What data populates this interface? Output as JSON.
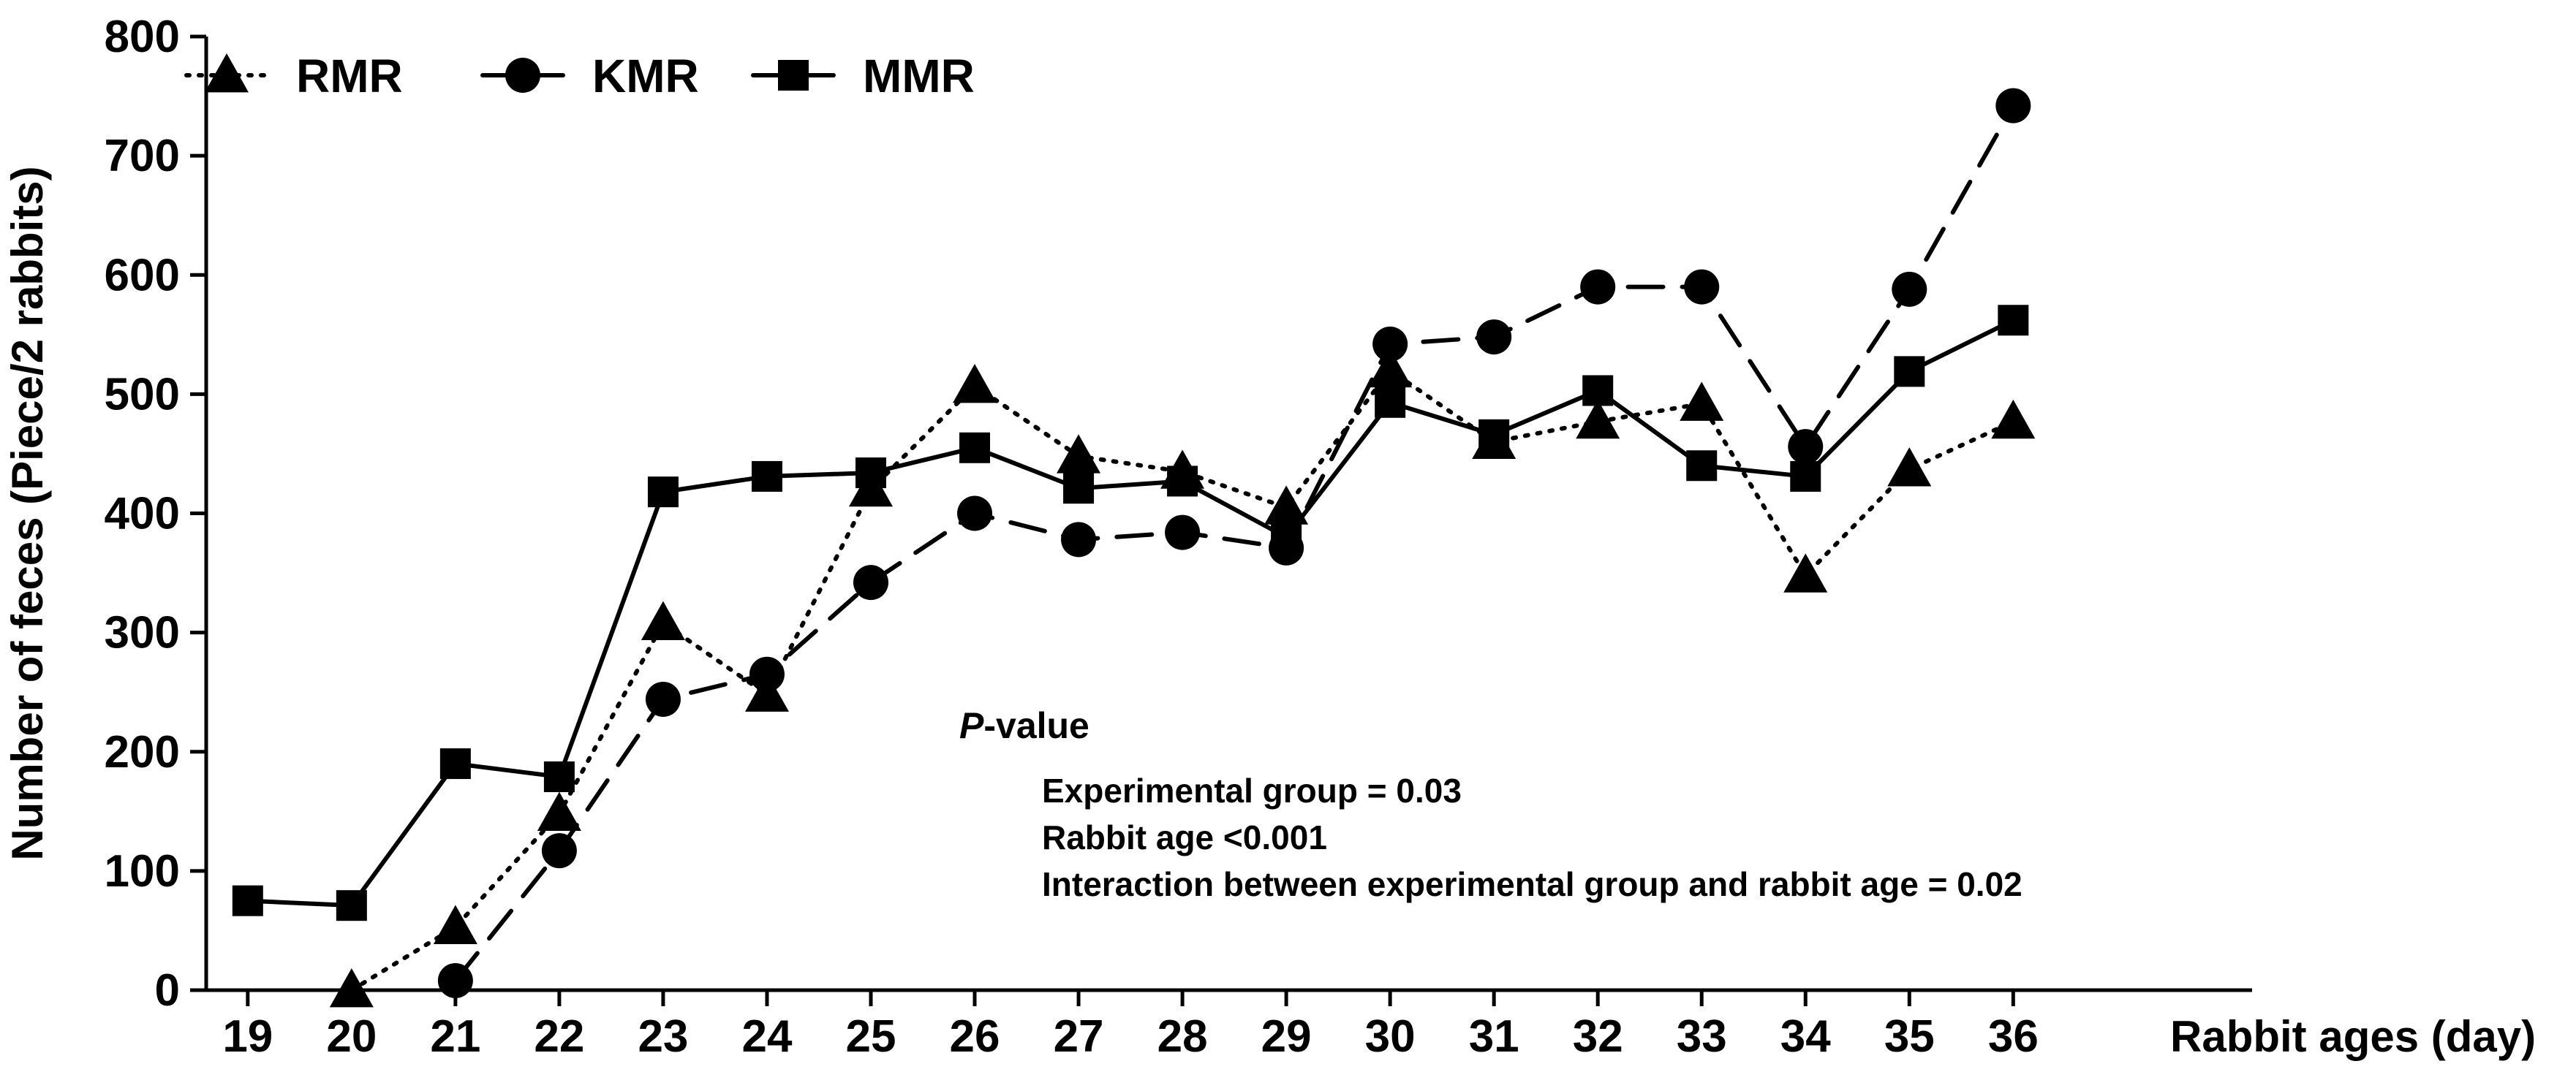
{
  "chart_data": {
    "type": "line",
    "title": "",
    "xlabel": "Rabbit ages (day)",
    "ylabel": "Number of feces (Piece/2 rabbits)",
    "x": [
      19,
      20,
      21,
      22,
      23,
      24,
      25,
      26,
      27,
      28,
      29,
      30,
      31,
      32,
      33,
      34,
      35,
      36
    ],
    "xlim": [
      18.6,
      38.3
    ],
    "ylim": [
      0,
      800
    ],
    "yticks": [
      0,
      100,
      200,
      300,
      400,
      500,
      600,
      700,
      800
    ],
    "grid": false,
    "legend_position": "top-left",
    "series": [
      {
        "name": "RMR",
        "marker": "triangle",
        "line_style": "dotted",
        "x": [
          20,
          21,
          22,
          23,
          24,
          25,
          26,
          27,
          28,
          29,
          30,
          31,
          32,
          33,
          34,
          35,
          36
        ],
        "values": [
          0,
          53,
          148,
          308,
          248,
          420,
          507,
          448,
          435,
          405,
          520,
          460,
          477,
          492,
          348,
          437,
          477
        ]
      },
      {
        "name": "KMR",
        "marker": "circle",
        "line_style": "dashed",
        "x": [
          21,
          22,
          23,
          24,
          25,
          26,
          27,
          28,
          29,
          30,
          31,
          32,
          33,
          34,
          35,
          36
        ],
        "values": [
          8,
          117,
          244,
          265,
          342,
          400,
          378,
          384,
          371,
          542,
          548,
          590,
          590,
          456,
          588,
          742
        ]
      },
      {
        "name": "MMR",
        "marker": "square",
        "line_style": "solid",
        "x": [
          19,
          20,
          21,
          22,
          23,
          24,
          25,
          26,
          27,
          28,
          29,
          30,
          31,
          32,
          33,
          34,
          35,
          36
        ],
        "values": [
          75,
          71,
          190,
          179,
          418,
          431,
          434,
          455,
          421,
          427,
          380,
          493,
          466,
          503,
          440,
          431,
          519,
          562
        ]
      }
    ],
    "annotation": {
      "heading_italic": "P",
      "heading_rest": "-value",
      "lines": [
        "Experimental group = 0.03",
        "Rabbit age <0.001",
        "Interaction between experimental group and rabbit age = 0.02"
      ]
    }
  }
}
